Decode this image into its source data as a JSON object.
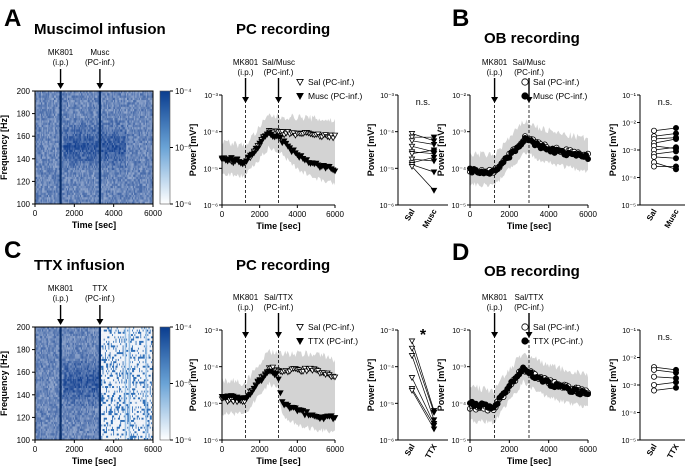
{
  "panels": [
    {
      "letter": "A",
      "title": "Muscimol infusion"
    },
    {
      "letter": "B",
      "title": "OB recording"
    },
    {
      "letter": "C",
      "title": "TTX infusion"
    },
    {
      "letter": "D",
      "title": "OB recording"
    }
  ],
  "subtitles": {
    "a_pc": "PC recording",
    "c_pc": "PC recording"
  },
  "chart_data": [
    {
      "id": "A-spec",
      "type": "heatmap",
      "xlabel": "Time [sec]",
      "ylabel": "Frequency [Hz]",
      "xlim": [
        0,
        6000
      ],
      "ylim": [
        100,
        200
      ],
      "xticks": [
        "0",
        "2000",
        "4000",
        "6000"
      ],
      "yticks": [
        "100",
        "120",
        "140",
        "160",
        "180",
        "200"
      ],
      "colorbar_ticks": [
        "10⁻⁴",
        "10⁻⁵",
        "10⁻⁶"
      ],
      "annotations": [
        {
          "x": 1300,
          "text": "MK801",
          "sub": "(i.p.)"
        },
        {
          "x": 3300,
          "text": "Musc",
          "sub": "(PC-inf.)"
        }
      ]
    },
    {
      "id": "A-pc",
      "type": "scatter",
      "scale": "log",
      "xlabel": "Time [sec]",
      "ylabel": "Power [mV²]",
      "xlim": [
        0,
        6000
      ],
      "ylim_exp": [
        -6,
        -3
      ],
      "xticks": [
        "0",
        "2000",
        "4000",
        "6000"
      ],
      "yticks": [
        "10⁻³",
        "10⁻⁴",
        "10⁻⁵",
        "10⁻⁶"
      ],
      "annotations": [
        {
          "x": 1250,
          "text": "MK801",
          "sub": "(i.p.)"
        },
        {
          "x": 3000,
          "text": "Sal/Musc",
          "sub": "(PC-inf.)"
        }
      ],
      "series": [
        {
          "name": "Sal (PC-inf.)",
          "marker": "open-triangle",
          "anchors": [
            [
              0,
              -4.75
            ],
            [
              1200,
              -4.85
            ],
            [
              2500,
              -4.0
            ],
            [
              3100,
              -4.05
            ],
            [
              4000,
              -4.05
            ],
            [
              5000,
              -4.1
            ],
            [
              6000,
              -4.15
            ]
          ]
        },
        {
          "name": "Musc (PC-inf.)",
          "marker": "filled-triangle",
          "anchors": [
            [
              0,
              -4.7
            ],
            [
              1200,
              -4.85
            ],
            [
              2500,
              -4.05
            ],
            [
              3100,
              -4.2
            ],
            [
              4000,
              -4.65
            ],
            [
              5000,
              -4.9
            ],
            [
              6000,
              -5.05
            ]
          ]
        }
      ]
    },
    {
      "id": "A-pair",
      "type": "scatter",
      "scale": "log",
      "ylabel": "Power [mV²]",
      "ylim_exp": [
        -6,
        -3
      ],
      "categories": [
        "Sal",
        "Musc"
      ],
      "yticks": [
        "10⁻³",
        "10⁻⁴",
        "10⁻⁵",
        "10⁻⁶"
      ],
      "significance": "n.s.",
      "pairs": [
        [
          -4.05,
          -4.25
        ],
        [
          -4.15,
          -4.15
        ],
        [
          -4.25,
          -4.35
        ],
        [
          -4.4,
          -4.55
        ],
        [
          -4.55,
          -4.6
        ],
        [
          -4.6,
          -4.5
        ],
        [
          -4.75,
          -4.8
        ],
        [
          -4.85,
          -4.7
        ],
        [
          -4.9,
          -5.1
        ],
        [
          -4.95,
          -5.6
        ]
      ]
    },
    {
      "id": "B-ob",
      "type": "scatter",
      "scale": "log",
      "xlabel": "Time [sec]",
      "ylabel": "Power [mV²]",
      "xlim": [
        0,
        6000
      ],
      "ylim_exp": [
        -5,
        -2
      ],
      "xticks": [
        "0",
        "2000",
        "4000",
        "6000"
      ],
      "yticks": [
        "10⁻²",
        "10⁻³",
        "10⁻⁴",
        "10⁻⁵"
      ],
      "annotations": [
        {
          "x": 1250,
          "text": "MK801",
          "sub": "(i.p.)"
        },
        {
          "x": 3000,
          "text": "Sal/Musc",
          "sub": "(PC-inf.)"
        }
      ],
      "series": [
        {
          "name": "Sal (PC-inf.)",
          "marker": "open-circle",
          "anchors": [
            [
              0,
              -4.05
            ],
            [
              1200,
              -4.1
            ],
            [
              2800,
              -3.15
            ],
            [
              3500,
              -3.35
            ],
            [
              4500,
              -3.5
            ],
            [
              6000,
              -3.65
            ]
          ]
        },
        {
          "name": "Musc (PC-inf.)",
          "marker": "filled-circle",
          "anchors": [
            [
              0,
              -4.05
            ],
            [
              1200,
              -4.1
            ],
            [
              2800,
              -3.2
            ],
            [
              3500,
              -3.4
            ],
            [
              4500,
              -3.55
            ],
            [
              6000,
              -3.7
            ]
          ]
        }
      ]
    },
    {
      "id": "B-pair",
      "type": "scatter",
      "scale": "log",
      "ylabel": "Power [mV²]",
      "ylim_exp": [
        -5,
        -1
      ],
      "categories": [
        "Sal",
        "Musc"
      ],
      "yticks": [
        "10⁻¹",
        "10⁻²",
        "10⁻³",
        "10⁻⁴",
        "10⁻⁵"
      ],
      "significance": "n.s.",
      "pairs": [
        [
          -2.3,
          -2.2
        ],
        [
          -2.5,
          -2.4
        ],
        [
          -2.6,
          -2.55
        ],
        [
          -2.75,
          -2.6
        ],
        [
          -2.85,
          -2.95
        ],
        [
          -3.0,
          -2.9
        ],
        [
          -3.15,
          -3.05
        ],
        [
          -3.25,
          -3.3
        ],
        [
          -3.45,
          -3.7
        ],
        [
          -3.6,
          -3.6
        ]
      ]
    },
    {
      "id": "C-spec",
      "type": "heatmap",
      "xlabel": "Time [sec]",
      "ylabel": "Frequency [Hz]",
      "xlim": [
        0,
        6000
      ],
      "ylim": [
        100,
        200
      ],
      "xticks": [
        "0",
        "2000",
        "4000",
        "6000"
      ],
      "yticks": [
        "100",
        "120",
        "140",
        "160",
        "180",
        "200"
      ],
      "colorbar_ticks": [
        "10⁻⁴",
        "10⁻⁵",
        "10⁻⁶"
      ],
      "annotations": [
        {
          "x": 1300,
          "text": "MK801",
          "sub": "(i.p.)"
        },
        {
          "x": 3300,
          "text": "TTX",
          "sub": "(PC-inf.)"
        }
      ]
    },
    {
      "id": "C-pc",
      "type": "scatter",
      "scale": "log",
      "xlabel": "Time [sec]",
      "ylabel": "Power [mV²]",
      "xlim": [
        0,
        6000
      ],
      "ylim_exp": [
        -6,
        -3
      ],
      "xticks": [
        "0",
        "2000",
        "4000",
        "6000"
      ],
      "yticks": [
        "10⁻³",
        "10⁻⁴",
        "10⁻⁵",
        "10⁻⁶"
      ],
      "annotations": [
        {
          "x": 1250,
          "text": "MK801",
          "sub": "(i.p.)"
        },
        {
          "x": 3000,
          "text": "Sal/TTX",
          "sub": "(PC-inf.)"
        }
      ],
      "series": [
        {
          "name": "Sal (PC-inf.)",
          "marker": "open-triangle",
          "anchors": [
            [
              0,
              -4.9
            ],
            [
              1200,
              -4.9
            ],
            [
              2500,
              -4.05
            ],
            [
              3100,
              -4.1
            ],
            [
              4000,
              -4.1
            ],
            [
              5000,
              -4.1
            ],
            [
              6000,
              -4.25
            ]
          ]
        },
        {
          "name": "TTX (PC-inf.)",
          "marker": "filled-triangle",
          "anchors": [
            [
              0,
              -4.8
            ],
            [
              1200,
              -4.9
            ],
            [
              2500,
              -4.1
            ],
            [
              2950,
              -4.2
            ],
            [
              3200,
              -5.0
            ],
            [
              4000,
              -5.2
            ],
            [
              5000,
              -5.35
            ],
            [
              6000,
              -5.4
            ]
          ]
        }
      ]
    },
    {
      "id": "C-pair",
      "type": "scatter",
      "scale": "log",
      "ylabel": "Power [mV²]",
      "ylim_exp": [
        -6,
        -3
      ],
      "categories": [
        "Sal",
        "TTX"
      ],
      "yticks": [
        "10⁻³",
        "10⁻⁴",
        "10⁻⁵",
        "10⁻⁶"
      ],
      "significance": "*",
      "pairs": [
        [
          -3.3,
          -5.2
        ],
        [
          -3.5,
          -5.25
        ],
        [
          -3.7,
          -5.45
        ],
        [
          -4.3,
          -5.55
        ],
        [
          -4.6,
          -5.6
        ],
        [
          -4.65,
          -5.7
        ]
      ]
    },
    {
      "id": "D-ob",
      "type": "scatter",
      "scale": "log",
      "xlabel": "Time [sec]",
      "ylabel": "Power [mV²]",
      "xlim": [
        0,
        6000
      ],
      "ylim_exp": [
        -5,
        -2
      ],
      "xticks": [
        "0",
        "2000",
        "4000",
        "6000"
      ],
      "yticks": [
        "10⁻²",
        "10⁻³",
        "10⁻⁴",
        "10⁻⁵"
      ],
      "annotations": [
        {
          "x": 1250,
          "text": "MK801",
          "sub": "(i.p.)"
        },
        {
          "x": 3000,
          "text": "Sal/TTX",
          "sub": "(PC-inf.)"
        }
      ],
      "series": [
        {
          "name": "Sal (PC-inf.)",
          "marker": "open-circle",
          "anchors": [
            [
              0,
              -4.1
            ],
            [
              1200,
              -4.15
            ],
            [
              2700,
              -3.05
            ],
            [
              3500,
              -3.3
            ],
            [
              4500,
              -3.5
            ],
            [
              6000,
              -3.7
            ]
          ]
        },
        {
          "name": "TTX (PC-inf.)",
          "marker": "filled-circle",
          "anchors": [
            [
              0,
              -4.0
            ],
            [
              1200,
              -4.1
            ],
            [
              2700,
              -3.05
            ],
            [
              3500,
              -3.35
            ],
            [
              4500,
              -3.55
            ],
            [
              6000,
              -3.75
            ]
          ]
        }
      ]
    },
    {
      "id": "D-pair",
      "type": "scatter",
      "scale": "log",
      "ylabel": "Power [mV²]",
      "ylim_exp": [
        -5,
        -1
      ],
      "categories": [
        "Sal",
        "TTX"
      ],
      "yticks": [
        "10⁻¹",
        "10⁻²",
        "10⁻³",
        "10⁻⁴",
        "10⁻⁵"
      ],
      "significance": "n.s.",
      "pairs": [
        [
          -2.35,
          -2.45
        ],
        [
          -2.45,
          -2.55
        ],
        [
          -2.7,
          -2.75
        ],
        [
          -3.0,
          -2.9
        ],
        [
          -3.2,
          -3.1
        ]
      ]
    }
  ]
}
